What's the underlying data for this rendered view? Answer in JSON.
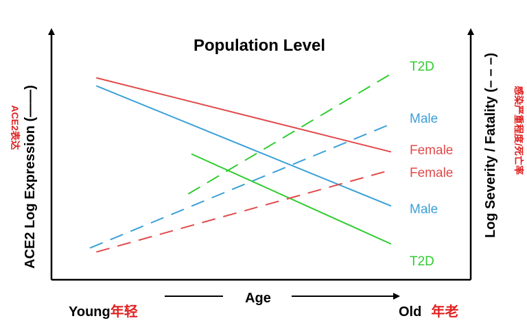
{
  "chart_data": {
    "type": "line",
    "title": "Population Level",
    "xlabel": "Age",
    "x_start_label": "Young",
    "x_start_label_cn": "年轻",
    "x_end_label": "Old",
    "x_end_label_cn": "年老",
    "y_left_label": "ACE2 Log Expression (——)",
    "y_left_label_cn": "ACE2表达",
    "y_right_label": "Log Severity / Fatality (– – –)",
    "y_right_label_cn": "感染严重程度/死亡率",
    "x_range": [
      0,
      1
    ],
    "y_range": [
      0,
      1
    ],
    "series": [
      {
        "name": "Female",
        "measure": "ACE2 expression",
        "style": "solid",
        "color": "#e04a4a",
        "x": [
          0.07,
          1.0
        ],
        "y": [
          0.94,
          0.57
        ]
      },
      {
        "name": "Male",
        "measure": "ACE2 expression",
        "style": "solid",
        "color": "#3aa0d8",
        "x": [
          0.07,
          1.0
        ],
        "y": [
          0.9,
          0.3
        ]
      },
      {
        "name": "T2D",
        "measure": "ACE2 expression",
        "style": "solid",
        "color": "#2ecc2e",
        "x": [
          0.37,
          1.0
        ],
        "y": [
          0.56,
          0.11
        ]
      },
      {
        "name": "T2D",
        "measure": "severity/fatality",
        "style": "dashed",
        "color": "#2ecc2e",
        "x": [
          0.36,
          1.0
        ],
        "y": [
          0.36,
          0.96
        ]
      },
      {
        "name": "Male",
        "measure": "severity/fatality",
        "style": "dashed",
        "color": "#3aa0d8",
        "x": [
          0.05,
          1.0
        ],
        "y": [
          0.09,
          0.71
        ]
      },
      {
        "name": "Female",
        "measure": "severity/fatality",
        "style": "dashed",
        "color": "#e04a4a",
        "x": [
          0.07,
          1.0
        ],
        "y": [
          0.07,
          0.48
        ]
      }
    ],
    "right_labels": [
      {
        "text": "T2D",
        "color": "#2ecc2e"
      },
      {
        "text": "Male",
        "color": "#3aa0d8"
      },
      {
        "text": "Female",
        "color": "#e04a4a"
      },
      {
        "text": "Female",
        "color": "#e04a4a"
      },
      {
        "text": "Male",
        "color": "#3aa0d8"
      },
      {
        "text": "T2D",
        "color": "#2ecc2e"
      }
    ],
    "grid": false,
    "legend": "inline-right"
  },
  "colors": {
    "axis": "#000000",
    "chinese_label": "#e02020"
  }
}
